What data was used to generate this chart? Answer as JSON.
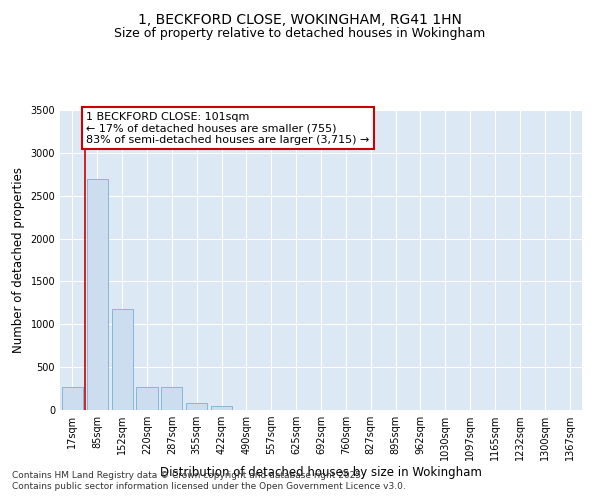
{
  "title1": "1, BECKFORD CLOSE, WOKINGHAM, RG41 1HN",
  "title2": "Size of property relative to detached houses in Wokingham",
  "xlabel": "Distribution of detached houses by size in Wokingham",
  "ylabel": "Number of detached properties",
  "categories": [
    "17sqm",
    "85sqm",
    "152sqm",
    "220sqm",
    "287sqm",
    "355sqm",
    "422sqm",
    "490sqm",
    "557sqm",
    "625sqm",
    "692sqm",
    "760sqm",
    "827sqm",
    "895sqm",
    "962sqm",
    "1030sqm",
    "1097sqm",
    "1165sqm",
    "1232sqm",
    "1300sqm",
    "1367sqm"
  ],
  "values": [
    270,
    2700,
    1180,
    270,
    270,
    80,
    50,
    0,
    0,
    0,
    0,
    0,
    0,
    0,
    0,
    0,
    0,
    0,
    0,
    0,
    0
  ],
  "bar_color": "#ccddef",
  "bar_edge_color": "#7aafd4",
  "vline_x": 0.5,
  "vline_color": "#cc0000",
  "annotation_line1": "1 BECKFORD CLOSE: 101sqm",
  "annotation_line2": "← 17% of detached houses are smaller (755)",
  "annotation_line3": "83% of semi-detached houses are larger (3,715) →",
  "annotation_box_color": "#ffffff",
  "annotation_box_edge": "#cc0000",
  "ylim": [
    0,
    3500
  ],
  "yticks": [
    0,
    500,
    1000,
    1500,
    2000,
    2500,
    3000,
    3500
  ],
  "background_color": "#dde8f5",
  "grid_color": "#ffffff",
  "footer1": "Contains HM Land Registry data © Crown copyright and database right 2025.",
  "footer2": "Contains public sector information licensed under the Open Government Licence v3.0.",
  "title_fontsize": 10,
  "subtitle_fontsize": 9,
  "tick_fontsize": 7,
  "label_fontsize": 8.5,
  "annot_fontsize": 8,
  "footer_fontsize": 6.5
}
